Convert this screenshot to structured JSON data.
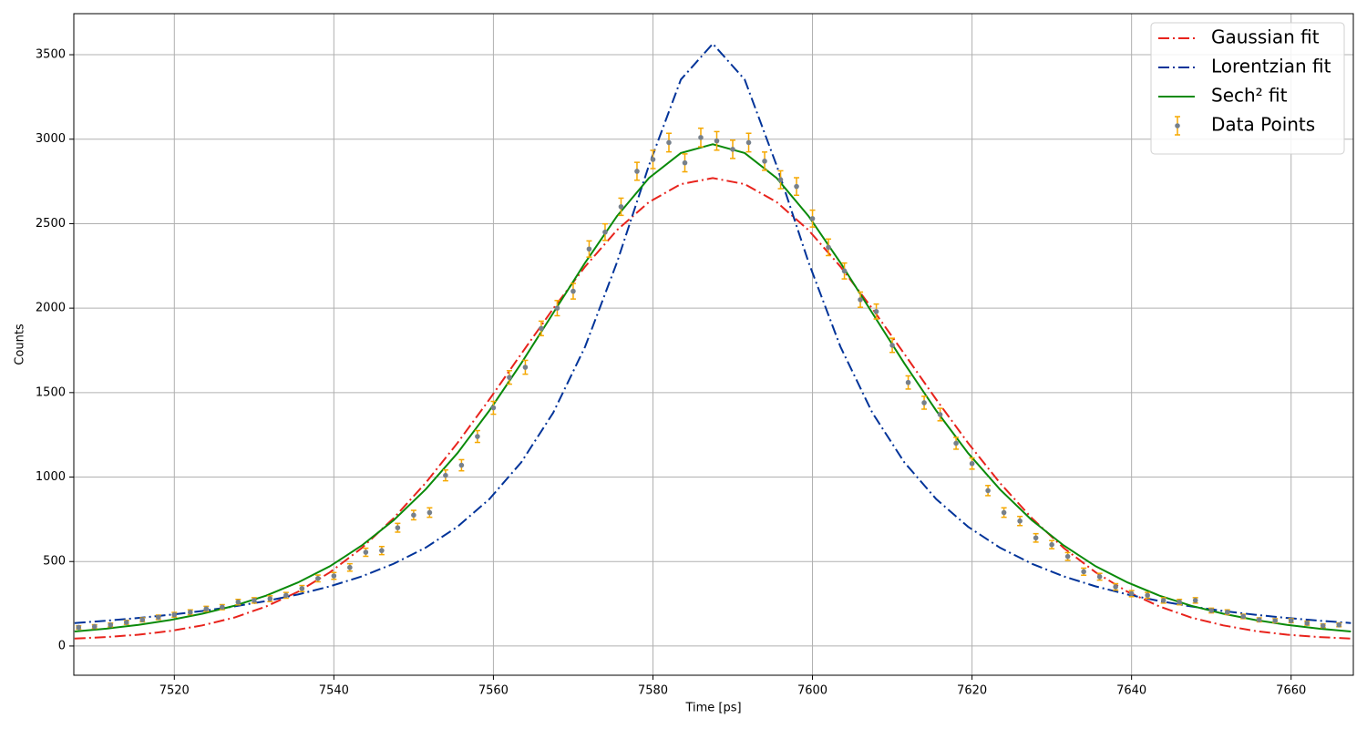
{
  "chart_data": {
    "type": "line",
    "xlabel": "Time [ps]",
    "ylabel": "Counts",
    "xlim": [
      7507.4,
      7667.8
    ],
    "ylim": [
      -173,
      3743
    ],
    "xticks": [
      7520,
      7540,
      7560,
      7580,
      7600,
      7620,
      7640,
      7660
    ],
    "yticks": [
      0,
      500,
      1000,
      1500,
      2000,
      2500,
      3000,
      3500
    ],
    "grid": true,
    "legend": "upper right",
    "series": [
      {
        "name": "Gaussian fit",
        "color": "#e8231c",
        "style": "dashdot",
        "x": [
          7507.5,
          7511.5,
          7515.5,
          7519.5,
          7523.5,
          7527.5,
          7531.5,
          7535.5,
          7539.5,
          7543.5,
          7547.5,
          7551.5,
          7555.5,
          7559.5,
          7563.5,
          7567.5,
          7571.5,
          7575.5,
          7579.5,
          7583.5,
          7587.5,
          7591.5,
          7595.5,
          7599.5,
          7603.5,
          7607.5,
          7611.5,
          7615.5,
          7619.5,
          7623.5,
          7627.5,
          7631.5,
          7635.5,
          7639.5,
          7643.5,
          7647.5,
          7651.5,
          7655.5,
          7659.5,
          7663.5,
          7667.5
        ],
        "values": [
          44,
          53,
          67,
          89,
          122,
          168,
          234,
          321,
          436,
          580,
          757,
          965,
          1202,
          1460,
          1730,
          1997,
          2246,
          2462,
          2628,
          2734,
          2770,
          2734,
          2628,
          2462,
          2246,
          1997,
          1730,
          1460,
          1202,
          965,
          757,
          580,
          436,
          321,
          234,
          168,
          122,
          89,
          67,
          53,
          44
        ]
      },
      {
        "name": "Lorentzian fit",
        "color": "#003399",
        "style": "dashdot",
        "x": [
          7507.5,
          7511.5,
          7515.5,
          7519.5,
          7523.5,
          7527.5,
          7531.5,
          7535.5,
          7539.5,
          7543.5,
          7547.5,
          7551.5,
          7555.5,
          7559.5,
          7563.5,
          7567.5,
          7571.5,
          7575.5,
          7579.5,
          7583.5,
          7587.5,
          7591.5,
          7595.5,
          7599.5,
          7603.5,
          7607.5,
          7611.5,
          7615.5,
          7619.5,
          7623.5,
          7627.5,
          7631.5,
          7635.5,
          7639.5,
          7643.5,
          7647.5,
          7651.5,
          7655.5,
          7659.5,
          7663.5,
          7667.5
        ],
        "values": [
          136,
          150,
          166,
          185,
          207,
          234,
          266,
          305,
          353,
          412,
          487,
          582,
          706,
          870,
          1088,
          1381,
          1772,
          2272,
          2845,
          3353,
          3565,
          3353,
          2845,
          2272,
          1772,
          1381,
          1088,
          870,
          706,
          582,
          487,
          412,
          353,
          305,
          266,
          234,
          207,
          185,
          166,
          150,
          136
        ]
      },
      {
        "name": "Sech² fit",
        "color": "#0a8a0a",
        "style": "solid",
        "x": [
          7507.5,
          7511.5,
          7515.5,
          7519.5,
          7523.5,
          7527.5,
          7531.5,
          7535.5,
          7539.5,
          7543.5,
          7547.5,
          7551.5,
          7555.5,
          7559.5,
          7563.5,
          7567.5,
          7571.5,
          7575.5,
          7579.5,
          7583.5,
          7587.5,
          7591.5,
          7595.5,
          7599.5,
          7603.5,
          7607.5,
          7611.5,
          7615.5,
          7619.5,
          7623.5,
          7627.5,
          7631.5,
          7635.5,
          7639.5,
          7643.5,
          7647.5,
          7651.5,
          7655.5,
          7659.5,
          7663.5,
          7667.5
        ],
        "values": [
          86,
          103,
          125,
          154,
          191,
          238,
          298,
          376,
          472,
          595,
          745,
          927,
          1142,
          1394,
          1674,
          1971,
          2269,
          2545,
          2770,
          2918,
          2970,
          2918,
          2770,
          2545,
          2269,
          1971,
          1674,
          1394,
          1142,
          927,
          745,
          595,
          472,
          376,
          298,
          238,
          191,
          154,
          125,
          103,
          86
        ]
      },
      {
        "name": "Data Points",
        "color": "#76808c",
        "error_color": "#f5a800",
        "style": "errorbar",
        "x": [
          7508,
          7510,
          7512,
          7514,
          7516,
          7518,
          7520,
          7522,
          7524,
          7526,
          7528,
          7530,
          7532,
          7534,
          7536,
          7538,
          7540,
          7542,
          7544,
          7546,
          7548,
          7550,
          7552,
          7554,
          7556,
          7558,
          7560,
          7562,
          7564,
          7566,
          7568,
          7570,
          7572,
          7574,
          7576,
          7578,
          7580,
          7582,
          7584,
          7586,
          7588,
          7590,
          7592,
          7594,
          7596,
          7598,
          7600,
          7602,
          7604,
          7606,
          7608,
          7610,
          7612,
          7614,
          7616,
          7618,
          7620,
          7622,
          7624,
          7626,
          7628,
          7630,
          7632,
          7634,
          7636,
          7638,
          7640,
          7642,
          7644,
          7646,
          7648,
          7650,
          7652,
          7654,
          7656,
          7658,
          7660,
          7662,
          7664,
          7666
        ],
        "values": [
          110,
          115,
          125,
          140,
          155,
          170,
          185,
          200,
          220,
          230,
          260,
          270,
          280,
          300,
          340,
          400,
          415,
          465,
          555,
          565,
          700,
          775,
          790,
          1010,
          1070,
          1240,
          1410,
          1590,
          1650,
          1880,
          2000,
          2100,
          2350,
          2450,
          2600,
          2810,
          2880,
          2980,
          2860,
          3010,
          2990,
          2940,
          2980,
          2870,
          2760,
          2720,
          2530,
          2360,
          2220,
          2050,
          1980,
          1780,
          1560,
          1440,
          1370,
          1200,
          1080,
          920,
          790,
          740,
          640,
          600,
          530,
          440,
          410,
          350,
          310,
          300,
          270,
          260,
          270,
          210,
          200,
          175,
          155,
          150,
          150,
          135,
          120,
          125
        ],
        "errors": [
          10,
          11,
          11,
          12,
          12,
          13,
          14,
          14,
          15,
          15,
          16,
          16,
          17,
          17,
          18,
          20,
          20,
          22,
          24,
          24,
          26,
          28,
          28,
          32,
          33,
          35,
          38,
          40,
          41,
          43,
          45,
          46,
          48,
          49,
          51,
          53,
          54,
          55,
          53,
          55,
          55,
          54,
          55,
          54,
          53,
          52,
          50,
          49,
          47,
          45,
          44,
          42,
          39,
          38,
          37,
          35,
          33,
          30,
          28,
          27,
          25,
          24,
          23,
          21,
          20,
          19,
          18,
          17,
          16,
          16,
          16,
          14,
          14,
          13,
          12,
          12,
          12,
          12,
          11,
          11
        ]
      }
    ]
  }
}
